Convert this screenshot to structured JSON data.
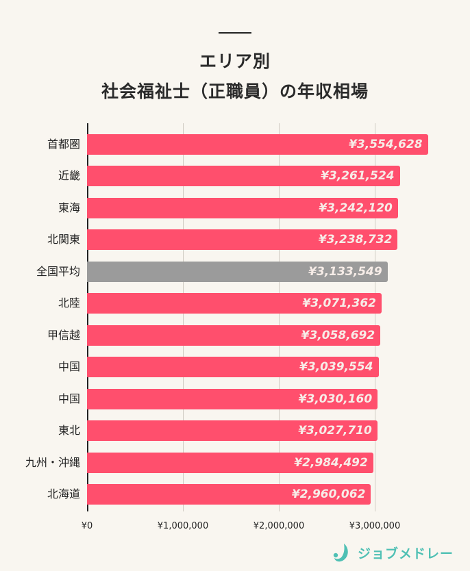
{
  "header": {
    "title_line1": "エリア別",
    "title_line2": "社会福祉士（正職員）の年収相場"
  },
  "chart_data": {
    "type": "bar",
    "orientation": "horizontal",
    "title": "エリア別 社会福祉士（正職員）の年収相場",
    "xlabel": "",
    "ylabel": "",
    "xlim": [
      0,
      3700000
    ],
    "grid": true,
    "categories": [
      "首都圏",
      "近畿",
      "東海",
      "北関東",
      "全国平均",
      "北陸",
      "甲信越",
      "中国",
      "中国",
      "東北",
      "九州・沖縄",
      "北海道"
    ],
    "values": [
      3554628,
      3261524,
      3242120,
      3238732,
      3133549,
      3071362,
      3058692,
      3039554,
      3030160,
      3027710,
      2984492,
      2960062
    ],
    "value_labels": [
      "¥3,554,628",
      "¥3,261,524",
      "¥3,242,120",
      "¥3,238,732",
      "¥3,133,549",
      "¥3,071,362",
      "¥3,058,692",
      "¥3,039,554",
      "¥3,030,160",
      "¥3,027,710",
      "¥2,984,492",
      "¥2,960,062"
    ],
    "highlight_index": 4,
    "x_ticks": [
      {
        "value": 0,
        "label": "¥0"
      },
      {
        "value": 1000000,
        "label": "¥1,000,000"
      },
      {
        "value": 2000000,
        "label": "¥2,000,000"
      },
      {
        "value": 3000000,
        "label": "¥3,000,000"
      }
    ],
    "colors": {
      "bar": "#ff4f6d",
      "highlight": "#9b9b9b",
      "background": "#f9f6f0"
    }
  },
  "footer": {
    "brand": "ジョブメドレー",
    "brand_color": "#4fc0b4"
  }
}
